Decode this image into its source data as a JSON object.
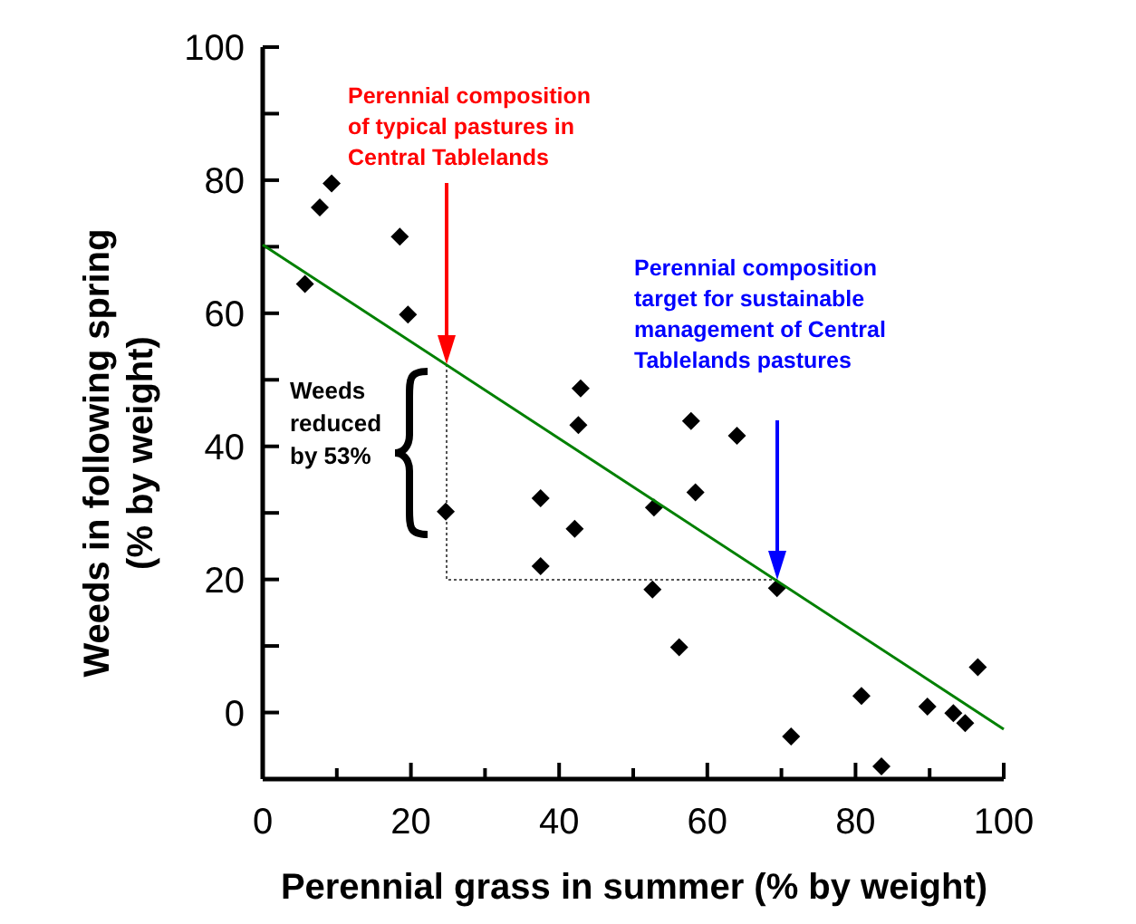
{
  "chart_data": {
    "type": "scatter",
    "xlabel": "Perennial grass in summer (% by weight)",
    "ylabel": "Weeds in following spring\n(% by weight)",
    "xlim": [
      0,
      100
    ],
    "xticks": [
      0,
      {
        "value": 10,
        "label": null
      },
      20,
      {
        "value": 30,
        "label": null
      },
      40,
      {
        "value": 50,
        "label": null
      },
      60,
      {
        "value": 70,
        "label": null
      },
      80,
      {
        "value": 90,
        "label": null
      },
      100
    ],
    "ylim": [
      -10,
      100
    ],
    "yticks": [
      {
        "value": -10,
        "label": null
      },
      0,
      {
        "value": 10,
        "label": null
      },
      20,
      {
        "value": 30,
        "label": null
      },
      40,
      {
        "value": 50,
        "label": null
      },
      60,
      {
        "value": 70,
        "label": null
      },
      80,
      {
        "value": 90,
        "label": null
      },
      100
    ],
    "grid": false,
    "marker": "diamond",
    "series": [
      {
        "color": "#000000",
        "x": [
          5.7,
          7.7,
          9.3,
          18.5,
          19.6,
          42.9,
          42.6,
          57.8,
          64.0,
          37.5,
          58.4,
          52.8,
          42.1,
          37.5,
          24.7,
          52.6,
          56.2,
          69.4,
          71.3,
          80.8,
          83.5,
          89.7,
          93.2,
          94.8,
          96.5
        ],
        "values": [
          64.4,
          75.9,
          79.5,
          71.5,
          59.8,
          48.7,
          43.2,
          43.8,
          41.6,
          32.2,
          33.1,
          30.8,
          27.6,
          22.0,
          30.2,
          18.5,
          9.8,
          18.7,
          -3.6,
          2.5,
          -8.1,
          0.9,
          -0.1,
          -1.6,
          6.8
        ]
      },
      {
        "type": "line",
        "color": "#008000",
        "marker": "none",
        "line_style": "solid",
        "x": [
          0,
          100
        ],
        "values": [
          70.3,
          -2.5
        ]
      }
    ],
    "annotations": [
      "Perennial composition\nof typical pastures in\nCentral Tablelands",
      "Perennial composition\ntarget for sustainable\nmanagement of Central\nTablelands pastures",
      "Weeds\nreduced\nby 53%"
    ]
  }
}
